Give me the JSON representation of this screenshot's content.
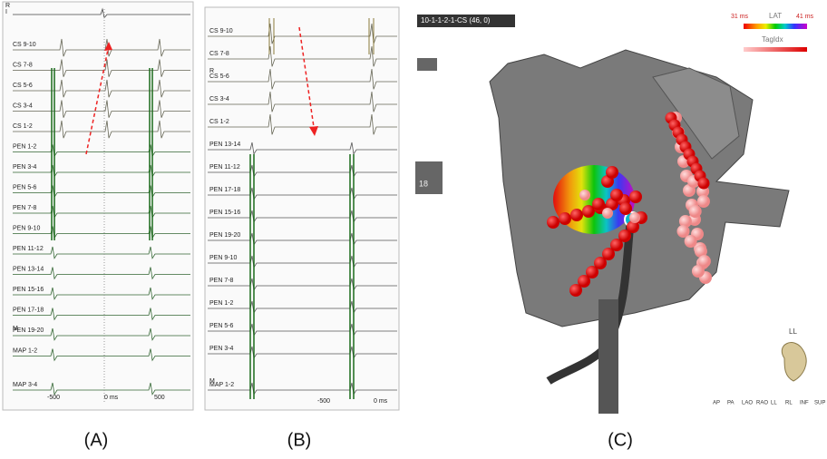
{
  "panel_a": {
    "lead_labels": [
      "R",
      "I"
    ],
    "channels": [
      "CS 9-10",
      "CS 7-8",
      "CS 5-6",
      "CS 3-4",
      "CS 1-2",
      "PEN 1-2",
      "PEN 3-4",
      "PEN 5-6",
      "PEN 7-8",
      "PEN 9-10",
      "PEN 11-12",
      "PEN 13-14",
      "PEN 15-16",
      "PEN 17-18",
      "PEN 19-20",
      "MAP 1-2",
      "MAP 3-4"
    ],
    "marker": "M",
    "axis_labels": [
      "-500",
      "0 ms",
      "500"
    ]
  },
  "panel_b": {
    "channels": [
      "CS 9-10",
      "CS 7-8",
      "CS 5-6",
      "CS 3-4",
      "CS 1-2",
      "PEN 13-14",
      "PEN 11-12",
      "PEN 17-18",
      "PEN 15-16",
      "PEN 19-20",
      "PEN 9-10",
      "PEN 7-8",
      "PEN 1-2",
      "PEN 5-6",
      "PEN 3-4",
      "MAP 1-2"
    ],
    "lead_label": "R",
    "marker": "M",
    "axis_labels": [
      "-500",
      "0 ms"
    ]
  },
  "panel_c": {
    "selector": "10-1-1-2-1-CS (46, 0)",
    "legend": {
      "min": "31 ms",
      "title": "LAT",
      "max": "41 ms",
      "tag": "TagIdx"
    },
    "badge": "18",
    "view_label": "LL",
    "view_buttons": [
      "AP",
      "PA",
      "LAO",
      "RAO",
      "LL",
      "RL",
      "INF",
      "SUP"
    ]
  },
  "captions": [
    "(A)",
    "(B)",
    "(C)"
  ]
}
